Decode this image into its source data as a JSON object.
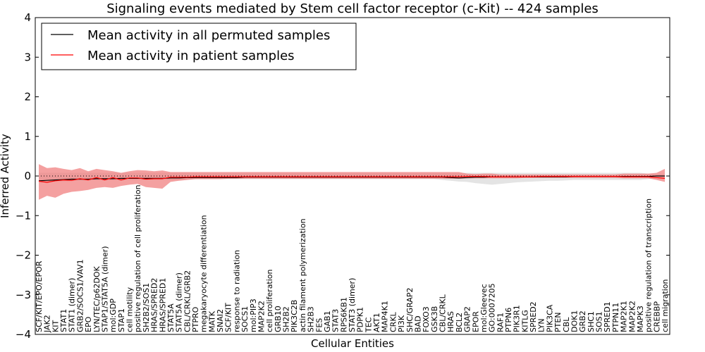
{
  "chart_data": {
    "type": "line",
    "title": "Signaling events mediated by Stem cell factor receptor (c-Kit) -- 424 samples",
    "xlabel": "Cellular Entities",
    "ylabel": "Inferred Activity",
    "ylim": [
      -4,
      4
    ],
    "yticks": [
      "4",
      "3",
      "2",
      "1",
      "0",
      "−1",
      "−2",
      "−3",
      "−4"
    ],
    "ytick_values": [
      4,
      3,
      2,
      1,
      0,
      -1,
      -2,
      -3,
      -4
    ],
    "zero_line": "dotted",
    "legend": {
      "location": "top-left",
      "entries": [
        {
          "label": "Mean activity in all permuted samples",
          "color": "#000000"
        },
        {
          "label": "Mean activity in patient samples",
          "color": "#ff0000"
        }
      ]
    },
    "categories": [
      "SCF/KIT/EPO/EPOR",
      "JAK2",
      "KIT",
      "STAT1",
      "STAT1 (dimer)",
      "GRB2/SOCS1/VAV1",
      "EPO",
      "LYN/TEC/p62DOK",
      "STAP1/STAT5A (dimer)",
      "mol:GDP",
      "STAP1",
      "cell motility",
      "positive regulation of cell proliferation",
      "SH2B2/SOS1",
      "HRAS/SPRED2",
      "HRAS/SPRED1",
      "STAT5A",
      "STAT5A (dimer)",
      "CBL/CRKL/GRB2",
      "PTPRO",
      "megakaryocyte differentiation",
      "MATK",
      "SNAI2",
      "SCF/KIT",
      "response to radiation",
      "SOCS1",
      "mol:PIP3",
      "MAP2K2",
      "cell proliferation",
      "GRB10",
      "SH2B2",
      "PIK3C2B",
      "actin filament polymerization",
      "SH2B3",
      "FES",
      "GAB1",
      "STAT3",
      "RPS6KB1",
      "STAT3 (dimer)",
      "PDPK1",
      "TEC",
      "AKT1",
      "MAP4K1",
      "CRKL",
      "PI3K",
      "SHC/GRAP2",
      "BAD",
      "FOXO3",
      "GSK3B",
      "CBL/CRKL",
      "HRAS",
      "BCL2",
      "GRAP2",
      "EPOR",
      "mol:Gleevec",
      "GO:0007205",
      "RAF1",
      "PTPN6",
      "PIK3R1",
      "KITLG",
      "SPRED2",
      "LYN",
      "PIK3CA",
      "PTEN",
      "CBL",
      "DOK1",
      "GRB2",
      "SHC1",
      "SOS1",
      "SPRED1",
      "PTPN11",
      "MAP2K1",
      "MAP2K2",
      "MAPK3",
      "positive regulation of transcription",
      "CREBBP",
      "cell migration"
    ],
    "series": [
      {
        "name": "Mean activity in all permuted samples",
        "color": "#000000",
        "values": [
          -0.12,
          -0.11,
          -0.1,
          -0.09,
          -0.08,
          -0.08,
          -0.08,
          -0.07,
          -0.07,
          -0.07,
          -0.06,
          -0.06,
          -0.06,
          -0.06,
          -0.06,
          -0.06,
          -0.05,
          -0.05,
          -0.04,
          -0.04,
          -0.04,
          -0.04,
          -0.04,
          -0.04,
          -0.04,
          -0.03,
          -0.03,
          -0.03,
          -0.03,
          -0.03,
          -0.03,
          -0.03,
          -0.03,
          -0.03,
          -0.03,
          -0.03,
          -0.03,
          -0.03,
          -0.03,
          -0.03,
          -0.03,
          -0.03,
          -0.03,
          -0.03,
          -0.03,
          -0.03,
          -0.03,
          -0.03,
          -0.03,
          -0.03,
          -0.04,
          -0.05,
          -0.04,
          -0.03,
          -0.03,
          -0.02,
          -0.02,
          -0.02,
          -0.02,
          -0.02,
          -0.02,
          -0.02,
          -0.02,
          -0.02,
          -0.02,
          -0.01,
          -0.01,
          -0.01,
          -0.01,
          -0.01,
          -0.01,
          -0.01,
          -0.01,
          -0.01,
          -0.01,
          0.0,
          0.0
        ]
      },
      {
        "name": "Mean activity in patient samples",
        "color": "#ff0000",
        "values": [
          -0.13,
          -0.16,
          -0.12,
          -0.1,
          -0.11,
          -0.07,
          -0.1,
          -0.04,
          -0.1,
          -0.04,
          -0.1,
          -0.05,
          -0.05,
          -0.08,
          -0.07,
          -0.07,
          -0.03,
          -0.03,
          -0.03,
          -0.02,
          -0.02,
          -0.02,
          -0.02,
          -0.02,
          -0.02,
          -0.02,
          -0.02,
          -0.02,
          -0.02,
          -0.02,
          -0.02,
          -0.02,
          -0.02,
          -0.02,
          -0.02,
          -0.02,
          -0.02,
          -0.02,
          -0.02,
          -0.02,
          -0.02,
          -0.02,
          -0.02,
          -0.02,
          -0.02,
          -0.02,
          -0.02,
          -0.02,
          -0.02,
          -0.02,
          -0.02,
          -0.02,
          -0.01,
          -0.01,
          -0.01,
          -0.02,
          -0.02,
          -0.02,
          -0.02,
          -0.02,
          -0.02,
          -0.01,
          -0.01,
          -0.01,
          -0.01,
          -0.01,
          -0.01,
          -0.01,
          -0.01,
          -0.01,
          -0.01,
          -0.02,
          -0.02,
          -0.02,
          -0.02,
          -0.04,
          -0.06
        ],
        "lower": [
          -0.6,
          -0.5,
          -0.55,
          -0.45,
          -0.4,
          -0.38,
          -0.35,
          -0.3,
          -0.28,
          -0.3,
          -0.25,
          -0.22,
          -0.2,
          -0.28,
          -0.3,
          -0.32,
          -0.15,
          -0.12,
          -0.1,
          -0.08,
          -0.08,
          -0.08,
          -0.08,
          -0.07,
          -0.07,
          -0.07,
          -0.07,
          -0.07,
          -0.07,
          -0.07,
          -0.07,
          -0.07,
          -0.07,
          -0.07,
          -0.07,
          -0.07,
          -0.07,
          -0.07,
          -0.07,
          -0.07,
          -0.07,
          -0.07,
          -0.07,
          -0.07,
          -0.07,
          -0.07,
          -0.07,
          -0.07,
          -0.07,
          -0.07,
          -0.07,
          -0.07,
          -0.06,
          -0.06,
          -0.06,
          -0.06,
          -0.06,
          -0.06,
          -0.06,
          -0.05,
          -0.05,
          -0.05,
          -0.05,
          -0.05,
          -0.05,
          -0.05,
          -0.05,
          -0.05,
          -0.05,
          -0.05,
          -0.05,
          -0.06,
          -0.06,
          -0.06,
          -0.06,
          -0.1,
          -0.15
        ],
        "upper": [
          0.3,
          0.2,
          0.22,
          0.18,
          0.15,
          0.2,
          0.12,
          0.18,
          0.15,
          0.12,
          0.08,
          0.12,
          0.15,
          0.14,
          0.12,
          0.14,
          0.1,
          0.1,
          0.1,
          0.1,
          0.1,
          0.1,
          0.1,
          0.1,
          0.1,
          0.1,
          0.1,
          0.1,
          0.1,
          0.1,
          0.1,
          0.1,
          0.1,
          0.1,
          0.1,
          0.1,
          0.1,
          0.1,
          0.1,
          0.1,
          0.1,
          0.1,
          0.1,
          0.1,
          0.1,
          0.1,
          0.1,
          0.1,
          0.1,
          0.1,
          0.1,
          0.1,
          0.06,
          0.05,
          0.06,
          0.06,
          0.04,
          0.04,
          0.04,
          0.04,
          0.04,
          0.04,
          0.04,
          0.04,
          0.04,
          0.04,
          0.04,
          0.04,
          0.04,
          0.04,
          0.04,
          0.06,
          0.06,
          0.06,
          0.06,
          0.08,
          0.18
        ]
      },
      {
        "name": "permuted range",
        "color": "#bbbbbb",
        "lower": [
          -0.18,
          -0.16,
          -0.15,
          -0.14,
          -0.13,
          -0.12,
          -0.12,
          -0.11,
          -0.11,
          -0.11,
          -0.1,
          -0.1,
          -0.1,
          -0.1,
          -0.1,
          -0.1,
          -0.09,
          -0.09,
          -0.08,
          -0.08,
          -0.08,
          -0.08,
          -0.08,
          -0.08,
          -0.08,
          -0.08,
          -0.08,
          -0.08,
          -0.08,
          -0.08,
          -0.08,
          -0.08,
          -0.08,
          -0.08,
          -0.08,
          -0.08,
          -0.08,
          -0.08,
          -0.08,
          -0.08,
          -0.08,
          -0.08,
          -0.08,
          -0.08,
          -0.08,
          -0.08,
          -0.08,
          -0.08,
          -0.08,
          -0.1,
          -0.12,
          -0.14,
          -0.15,
          -0.18,
          -0.2,
          -0.22,
          -0.2,
          -0.18,
          -0.16,
          -0.15,
          -0.14,
          -0.13,
          -0.12,
          -0.12,
          -0.11,
          -0.1,
          -0.1,
          -0.1,
          -0.1,
          -0.1,
          -0.1,
          -0.1,
          -0.1,
          -0.1,
          -0.08,
          -0.06,
          -0.05
        ],
        "upper": [
          0.08,
          0.08,
          0.08,
          0.08,
          0.08,
          0.08,
          0.08,
          0.08,
          0.08,
          0.08,
          0.08,
          0.08,
          0.08,
          0.08,
          0.08,
          0.08,
          0.08,
          0.08,
          0.08,
          0.08,
          0.08,
          0.08,
          0.08,
          0.08,
          0.08,
          0.08,
          0.08,
          0.08,
          0.08,
          0.08,
          0.08,
          0.08,
          0.08,
          0.08,
          0.08,
          0.08,
          0.08,
          0.08,
          0.08,
          0.08,
          0.08,
          0.08,
          0.08,
          0.08,
          0.08,
          0.08,
          0.08,
          0.08,
          0.08,
          0.08,
          0.08,
          0.08,
          0.08,
          0.08,
          0.08,
          0.08,
          0.08,
          0.08,
          0.08,
          0.08,
          0.08,
          0.08,
          0.08,
          0.08,
          0.08,
          0.08,
          0.08,
          0.08,
          0.08,
          0.08,
          0.08,
          0.08,
          0.08,
          0.08,
          0.06,
          0.05,
          0.05
        ]
      }
    ]
  }
}
